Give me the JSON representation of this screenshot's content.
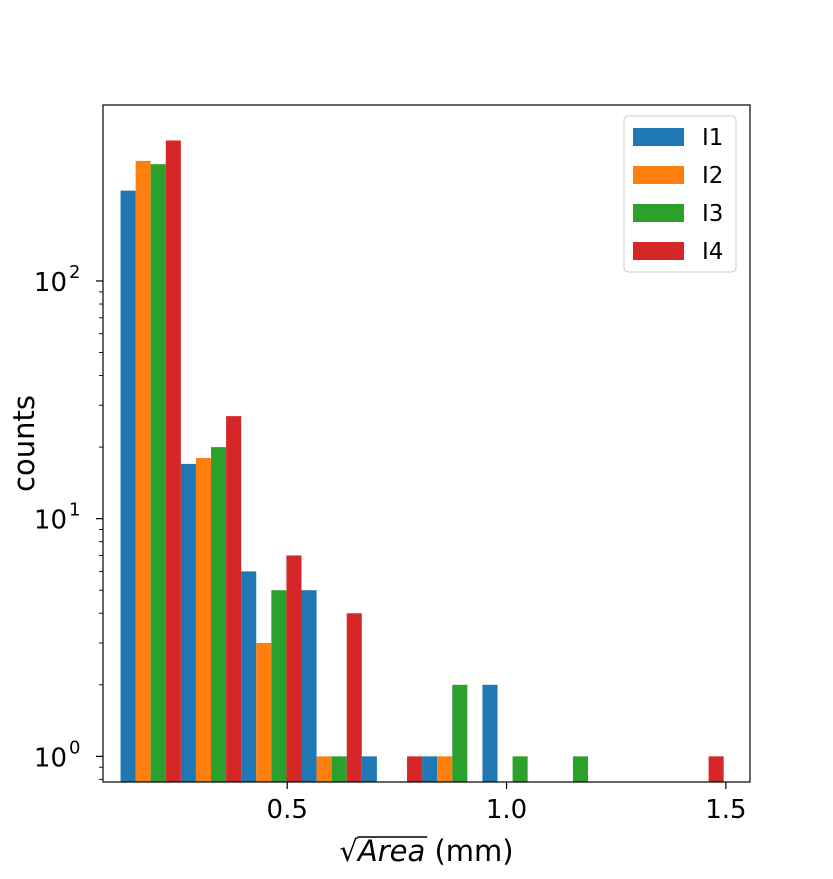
{
  "chart_data": {
    "type": "bar",
    "title": "",
    "xlabel_sqrt": "√",
    "xlabel_var": "Area",
    "xlabel_unit": " (mm)",
    "ylabel": "counts",
    "yscale": "log",
    "ylim": [
      0.78,
      550
    ],
    "xlim": [
      0.08,
      1.555
    ],
    "xticks": [
      {
        "value": 0.5,
        "label": "0.5"
      },
      {
        "value": 1.0,
        "label": "1.0"
      },
      {
        "value": 1.5,
        "label": "1.5"
      }
    ],
    "yticks": [
      {
        "value": 1,
        "base": "10",
        "exp": "0"
      },
      {
        "value": 10,
        "base": "10",
        "exp": "1"
      },
      {
        "value": 100,
        "base": "10",
        "exp": "2"
      }
    ],
    "bin_width": 0.1375,
    "bin_starts": [
      0.12,
      0.2575,
      0.395,
      0.5325,
      0.67,
      0.8075,
      0.945,
      1.0825,
      1.22,
      1.3575
    ],
    "legend_position": "top-right",
    "series": [
      {
        "name": "I1",
        "color": "#1f77b4",
        "values": [
          240,
          17,
          6,
          5,
          1,
          1,
          2,
          0,
          0,
          0
        ]
      },
      {
        "name": "I2",
        "color": "#ff7f0e",
        "values": [
          320,
          18,
          3,
          1,
          0,
          1,
          0,
          0,
          0,
          0
        ]
      },
      {
        "name": "I3",
        "color": "#2ca02c",
        "values": [
          310,
          20,
          5,
          1,
          0,
          2,
          1,
          1,
          0,
          0
        ]
      },
      {
        "name": "I4",
        "color": "#d62728",
        "values": [
          390,
          27,
          7,
          4,
          1,
          0,
          0,
          0,
          0,
          1
        ]
      }
    ]
  }
}
